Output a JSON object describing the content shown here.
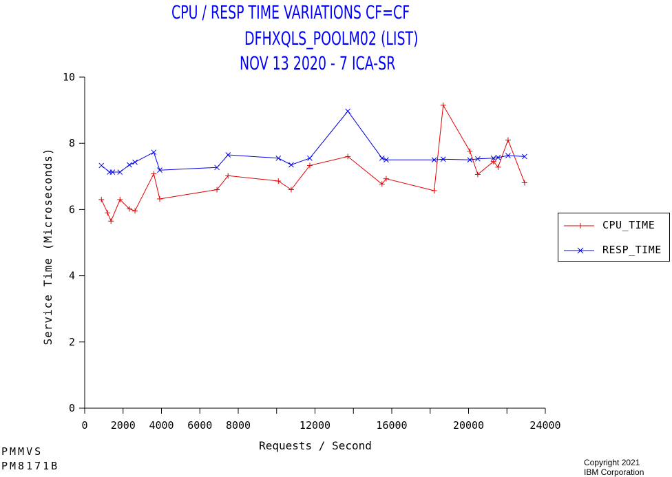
{
  "titles": {
    "line1": "CPU / RESP TIME VARIATIONS CF=CF",
    "line2": "DFHXQLS_POOLM02 (LIST)",
    "line3": "NOV 13 2020 - 7 ICA-SR"
  },
  "footer": {
    "left_line1": "PMMVS",
    "left_line2": "PM8171B",
    "copyright_line1": "Copyright 2021",
    "copyright_line2": "IBM Corporation"
  },
  "chart_data": {
    "type": "line",
    "xlabel": "Requests / Second",
    "ylabel": "Service Time (Microseconds)",
    "xlim": [
      0,
      24000
    ],
    "ylim": [
      0,
      10
    ],
    "x_ticks": [
      "0",
      "2000",
      "4000",
      "6000",
      "8000",
      "12000",
      "16000",
      "20000",
      "24000"
    ],
    "x_tick_values": [
      0,
      2000,
      4000,
      6000,
      8000,
      12000,
      16000,
      20000,
      24000
    ],
    "x_minor_ticks": [
      10000,
      14000,
      18000,
      22000
    ],
    "y_ticks": [
      "0",
      "2",
      "4",
      "6",
      "8",
      "10"
    ],
    "y_tick_values": [
      0,
      2,
      4,
      6,
      8,
      10
    ],
    "grid": false,
    "legend_position": "right",
    "series": [
      {
        "name": "CPU_TIME",
        "color": "#e00000",
        "marker": "plus",
        "points": [
          [
            870,
            6.3
          ],
          [
            1190,
            5.9
          ],
          [
            1370,
            5.65
          ],
          [
            1840,
            6.3
          ],
          [
            2330,
            6.02
          ],
          [
            2620,
            5.96
          ],
          [
            3600,
            7.08
          ],
          [
            3910,
            6.32
          ],
          [
            6890,
            6.6
          ],
          [
            7470,
            7.02
          ],
          [
            10090,
            6.86
          ],
          [
            10760,
            6.6
          ],
          [
            11730,
            7.33
          ],
          [
            13710,
            7.6
          ],
          [
            15490,
            6.77
          ],
          [
            15710,
            6.93
          ],
          [
            18210,
            6.57
          ],
          [
            18680,
            9.15
          ],
          [
            20070,
            7.76
          ],
          [
            20480,
            7.06
          ],
          [
            21300,
            7.45
          ],
          [
            21540,
            7.28
          ],
          [
            22060,
            8.1
          ],
          [
            22920,
            6.81
          ]
        ]
      },
      {
        "name": "RESP_TIME",
        "color": "#0000e0",
        "marker": "x",
        "points": [
          [
            870,
            7.33
          ],
          [
            1290,
            7.13
          ],
          [
            1450,
            7.13
          ],
          [
            1840,
            7.13
          ],
          [
            2330,
            7.35
          ],
          [
            2620,
            7.43
          ],
          [
            3600,
            7.73
          ],
          [
            3910,
            7.19
          ],
          [
            6890,
            7.27
          ],
          [
            7470,
            7.65
          ],
          [
            10090,
            7.55
          ],
          [
            10760,
            7.35
          ],
          [
            11730,
            7.55
          ],
          [
            13710,
            8.97
          ],
          [
            15490,
            7.55
          ],
          [
            15710,
            7.5
          ],
          [
            18210,
            7.5
          ],
          [
            18680,
            7.52
          ],
          [
            20070,
            7.5
          ],
          [
            20480,
            7.53
          ],
          [
            21300,
            7.55
          ],
          [
            21540,
            7.57
          ],
          [
            22060,
            7.63
          ],
          [
            22920,
            7.6
          ]
        ]
      }
    ]
  }
}
